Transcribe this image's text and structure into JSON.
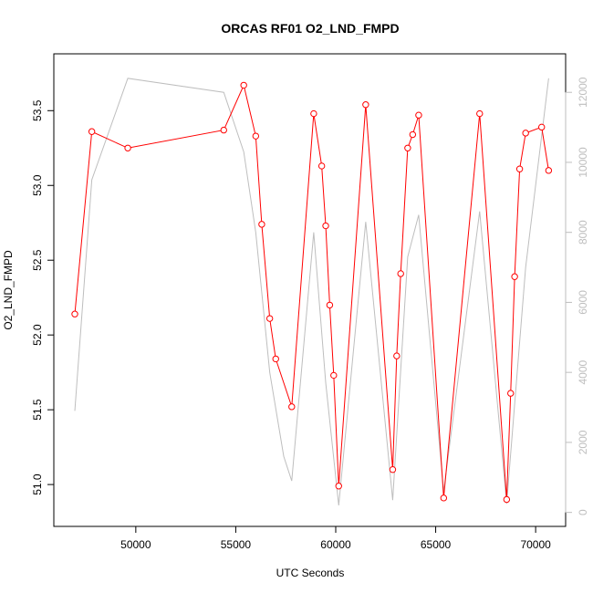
{
  "chart_data": {
    "type": "line",
    "title": "ORCAS RF01 O2_LND_FMPD",
    "xlabel": "UTC Seconds",
    "ylabel": "O2_LND_FMPD",
    "y2label": "",
    "xlim": [
      45900,
      71500
    ],
    "ylim": [
      50.72,
      53.88
    ],
    "y2lim": [
      -400,
      13100
    ],
    "x_ticks": [
      50000,
      55000,
      60000,
      65000,
      70000
    ],
    "y_ticks": [
      51.0,
      51.5,
      52.0,
      52.5,
      53.0,
      53.5
    ],
    "y2_ticks": [
      0,
      2000,
      4000,
      6000,
      8000,
      10000,
      12000
    ],
    "grid": false,
    "series": [
      {
        "axis": "left",
        "color": "#ff0000",
        "style": "line+open-circles",
        "x": [
          46950,
          47800,
          49600,
          54400,
          55400,
          56000,
          56300,
          56700,
          57000,
          57800,
          58900,
          59300,
          59500,
          59700,
          59900,
          60150,
          61500,
          62850,
          63050,
          63250,
          63600,
          63850,
          64150,
          65400,
          67200,
          68550,
          68750,
          68950,
          69200,
          69500,
          70300,
          70650
        ],
        "values": [
          52.14,
          53.36,
          53.25,
          53.37,
          53.67,
          53.33,
          52.74,
          52.11,
          51.84,
          51.52,
          53.48,
          53.13,
          52.73,
          52.2,
          51.73,
          50.99,
          53.54,
          51.1,
          51.86,
          52.41,
          53.25,
          53.34,
          53.47,
          50.91,
          53.48,
          50.9,
          51.61,
          52.39,
          53.11,
          53.35,
          53.39,
          53.1
        ]
      },
      {
        "axis": "right",
        "color": "#bebebe",
        "style": "line",
        "x": [
          46950,
          47800,
          49600,
          54400,
          55400,
          56000,
          56700,
          57400,
          57800,
          58900,
          59500,
          60150,
          61500,
          62850,
          63600,
          64150,
          65400,
          67200,
          68550,
          69500,
          70650
        ],
        "values": [
          2900,
          9500,
          12400,
          12000,
          10300,
          8000,
          4000,
          1600,
          900,
          8000,
          3700,
          200,
          8300,
          350,
          7300,
          8500,
          600,
          8600,
          250,
          7000,
          12400
        ]
      }
    ]
  }
}
